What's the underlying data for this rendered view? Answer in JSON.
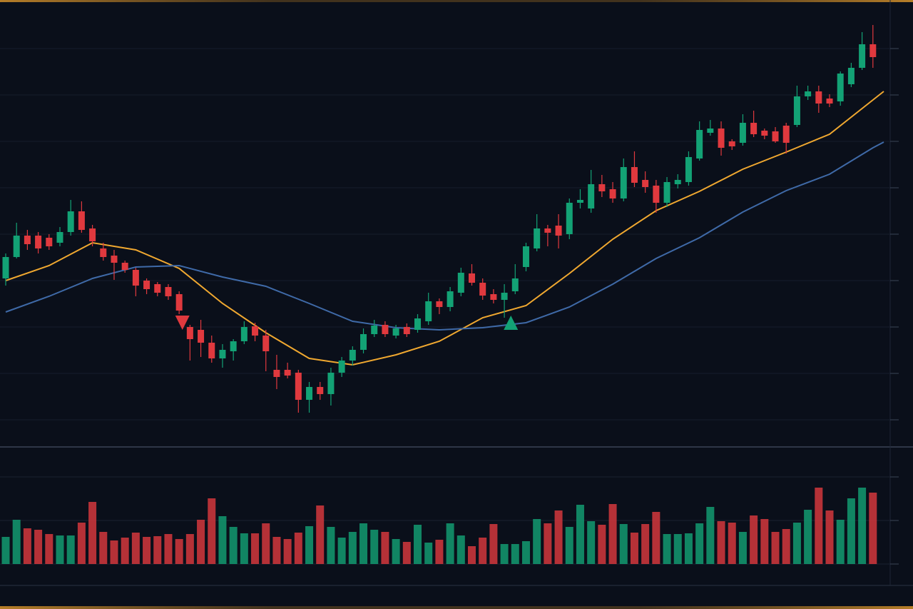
{
  "chart_data": {
    "type": "candlestick",
    "xlim": [
      0,
      81
    ],
    "ylim": [
      26,
      651
    ],
    "yticks": [
      65,
      130,
      195,
      260,
      325,
      390,
      455,
      520,
      585
    ],
    "grid": true,
    "up_color": "#13a275",
    "down_color": "#e0393e",
    "open": [
      263,
      293,
      323,
      323,
      320,
      313,
      328,
      357,
      333,
      305,
      295,
      285,
      275,
      260,
      255,
      251,
      241,
      195,
      191,
      173,
      151,
      161,
      175,
      196,
      183,
      135,
      135,
      131,
      93,
      111,
      101,
      131,
      148,
      163,
      185,
      198,
      183,
      195,
      191,
      203,
      231,
      223,
      243,
      270,
      257,
      241,
      233,
      245,
      279,
      305,
      333,
      337,
      325,
      369,
      361,
      395,
      388,
      375,
      419,
      401,
      393,
      369,
      395,
      398,
      431,
      467,
      473,
      455,
      453,
      481,
      470,
      469,
      477,
      478,
      518,
      525,
      515,
      511,
      535,
      558,
      591
    ],
    "high": [
      298,
      341,
      331,
      328,
      325,
      335,
      373,
      371,
      338,
      313,
      303,
      288,
      278,
      263,
      258,
      255,
      245,
      198,
      205,
      183,
      171,
      178,
      203,
      201,
      191,
      156,
      145,
      135,
      118,
      118,
      138,
      153,
      168,
      193,
      205,
      203,
      198,
      200,
      213,
      243,
      235,
      251,
      278,
      283,
      263,
      248,
      255,
      283,
      313,
      353,
      338,
      353,
      375,
      388,
      415,
      408,
      398,
      431,
      441,
      413,
      401,
      405,
      409,
      441,
      483,
      485,
      483,
      458,
      493,
      498,
      473,
      475,
      481,
      533,
      533,
      533,
      521,
      553,
      565,
      608,
      618
    ],
    "low": [
      253,
      291,
      303,
      298,
      303,
      308,
      323,
      327,
      308,
      288,
      261,
      271,
      238,
      241,
      238,
      233,
      213,
      148,
      153,
      145,
      138,
      148,
      171,
      175,
      133,
      108,
      123,
      75,
      75,
      93,
      85,
      125,
      141,
      158,
      181,
      181,
      179,
      181,
      187,
      198,
      213,
      217,
      238,
      253,
      233,
      228,
      208,
      241,
      273,
      301,
      308,
      305,
      318,
      361,
      355,
      377,
      369,
      371,
      391,
      383,
      355,
      363,
      389,
      393,
      428,
      463,
      435,
      443,
      449,
      461,
      458,
      453,
      438,
      475,
      513,
      495,
      503,
      505,
      531,
      555,
      558
    ],
    "close": [
      293,
      323,
      311,
      305,
      308,
      328,
      357,
      331,
      315,
      293,
      285,
      275,
      253,
      248,
      243,
      238,
      218,
      178,
      173,
      151,
      163,
      175,
      195,
      183,
      161,
      125,
      127,
      93,
      111,
      101,
      131,
      148,
      163,
      185,
      197,
      185,
      193,
      185,
      207,
      231,
      223,
      245,
      271,
      257,
      239,
      233,
      243,
      263,
      308,
      333,
      327,
      323,
      369,
      373,
      395,
      385,
      375,
      419,
      397,
      391,
      369,
      398,
      401,
      433,
      471,
      473,
      446,
      448,
      481,
      465,
      463,
      455,
      453,
      518,
      525,
      508,
      508,
      550,
      558,
      591,
      573
    ],
    "volume": {
      "ylim": [
        0,
        160
      ],
      "yticks": [
        0,
        61,
        122
      ],
      "values": [
        38,
        62,
        50,
        48,
        42,
        40,
        40,
        58,
        87,
        45,
        33,
        37,
        44,
        38,
        39,
        42,
        35,
        42,
        62,
        92,
        67,
        52,
        43,
        43,
        57,
        38,
        35,
        44,
        53,
        82,
        52,
        37,
        45,
        57,
        48,
        45,
        35,
        31,
        55,
        30,
        34,
        57,
        40,
        25,
        37,
        56,
        28,
        28,
        32,
        63,
        57,
        75,
        52,
        83,
        60,
        55,
        84,
        56,
        44,
        56,
        73,
        42,
        42,
        43,
        57,
        80,
        60,
        58,
        45,
        68,
        63,
        45,
        49,
        58,
        76,
        107,
        75,
        62,
        92,
        107,
        100
      ]
    },
    "series": [
      {
        "color": "#f0a830",
        "x": [
          0,
          4,
          8,
          12,
          16,
          20,
          24,
          28,
          32,
          36,
          40,
          44,
          48,
          52,
          56,
          60,
          64,
          68,
          72,
          76,
          80,
          81
        ],
        "values": [
          260,
          281,
          313,
          303,
          277,
          228,
          187,
          151,
          142,
          156,
          175,
          208,
          225,
          270,
          318,
          358,
          385,
          416,
          440,
          465,
          513,
          525
        ]
      },
      {
        "color": "#3f6aa8",
        "x": [
          0,
          4,
          8,
          12,
          16,
          20,
          24,
          28,
          32,
          36,
          40,
          44,
          48,
          52,
          56,
          60,
          64,
          68,
          72,
          76,
          80,
          81
        ],
        "values": [
          216,
          238,
          263,
          279,
          281,
          265,
          252,
          228,
          203,
          194,
          191,
          194,
          201,
          223,
          255,
          291,
          320,
          356,
          386,
          409,
          446,
          454
        ]
      }
    ],
    "markers": [
      {
        "x": 16.3,
        "y": 201,
        "color": "#e0393e",
        "direction": "down"
      },
      {
        "x": 46.6,
        "y": 201,
        "color": "#13a275",
        "direction": "up"
      }
    ]
  }
}
